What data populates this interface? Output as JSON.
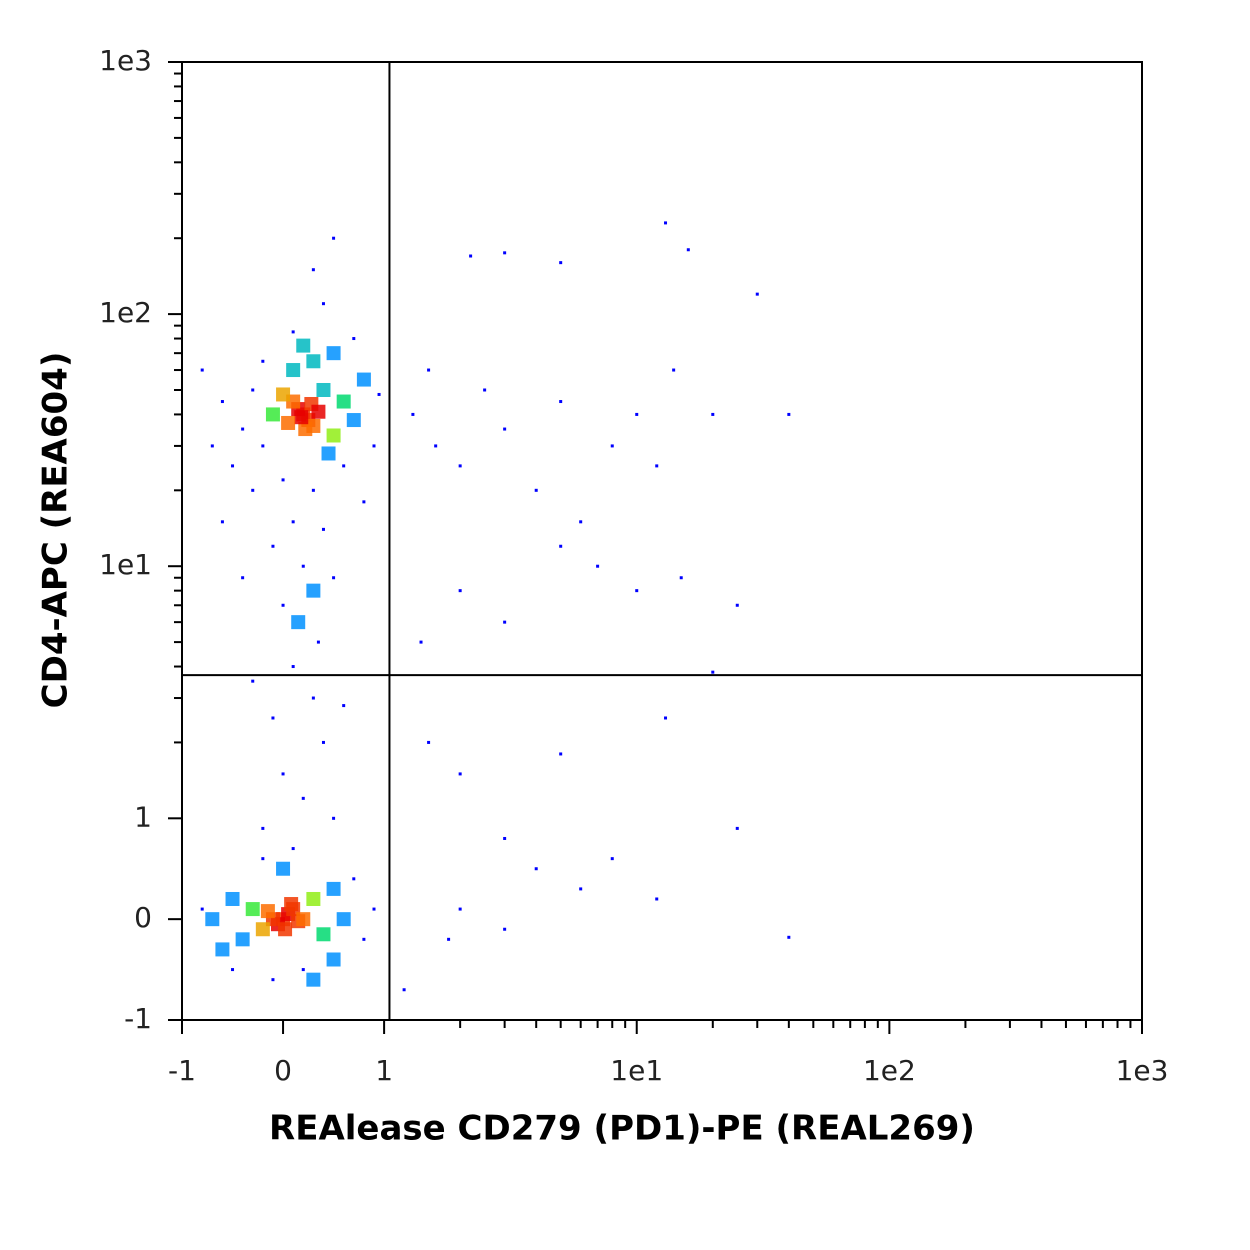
{
  "chart_data": {
    "type": "scatter",
    "x_label": "REAlease CD279 (PD1)-PE (REAL269)",
    "y_label": "CD4-APC (REA604)",
    "scale": "biexponential",
    "xlim": [
      -1,
      1000
    ],
    "ylim": [
      -1,
      1000
    ],
    "xticks": [
      -1,
      0,
      1,
      {
        "value": 10,
        "label": "1e1"
      },
      {
        "value": 100,
        "label": "1e2"
      },
      {
        "value": 1000,
        "label": "1e3"
      }
    ],
    "yticks": [
      -1,
      0,
      1,
      {
        "value": 10,
        "label": "1e1"
      },
      {
        "value": 100,
        "label": "1e2"
      },
      {
        "value": 1000,
        "label": "1e3"
      }
    ],
    "gates": {
      "x": 1.05,
      "y": 3.7
    },
    "color": "#0000ff",
    "x": [
      0.2,
      0.25,
      0.15,
      0.3,
      0.1,
      0.22,
      0.28,
      0.18,
      0.35,
      0.05,
      0.0,
      0.4,
      -0.1,
      0.5,
      -0.2,
      0.6,
      -0.3,
      0.1,
      0.3,
      0.45,
      -0.4,
      0.7,
      -0.5,
      0.8,
      -0.6,
      0.2,
      0.5,
      -0.2,
      0.0,
      0.3,
      0.6,
      -0.3,
      0.9,
      -0.7,
      0.1,
      0.4,
      -0.1,
      0.2,
      0.3,
      0.0,
      0.5,
      -0.4,
      0.15,
      0.35,
      0.1,
      -0.8,
      0.95,
      0.7,
      -0.6,
      0.8,
      0.1,
      0.3,
      -0.1,
      0.4,
      0.0,
      0.2,
      -0.3,
      0.6,
      0.5,
      -0.2,
      0.0,
      0.05,
      -0.05,
      0.1,
      -0.1,
      0.02,
      0.15,
      -0.15,
      0.08,
      0.2,
      -0.2,
      0.3,
      -0.3,
      0.4,
      -0.4,
      0.5,
      -0.5,
      0.6,
      -0.6,
      0.7,
      -0.7,
      0.8,
      -0.8,
      0.0,
      0.2,
      -0.2,
      0.3,
      0.1,
      -0.1,
      0.5,
      -0.5,
      0.9,
      1.3,
      1.6,
      2,
      1.5,
      2.5,
      3,
      4,
      5,
      6,
      8,
      10,
      12,
      14,
      20,
      30,
      40,
      16,
      13,
      2.2,
      3,
      5,
      1.4,
      2,
      3,
      5,
      7,
      10,
      15,
      20,
      25,
      1.5,
      2,
      3,
      4,
      6,
      8,
      12,
      25,
      40,
      1.2,
      2,
      3,
      1.8,
      5,
      13,
      0.5,
      0.3,
      0.4
    ],
    "y": [
      40,
      38,
      42,
      36,
      45,
      35,
      44,
      39,
      41,
      37,
      48,
      50,
      40,
      33,
      30,
      45,
      50,
      60,
      65,
      28,
      35,
      38,
      25,
      55,
      45,
      75,
      70,
      65,
      22,
      20,
      25,
      20,
      30,
      30,
      15,
      14,
      12,
      10,
      8,
      7,
      9,
      9,
      6,
      5,
      85,
      60,
      48,
      80,
      15,
      18,
      4,
      3,
      2.5,
      2,
      1.5,
      1.2,
      3.5,
      2.8,
      1.0,
      0.9,
      0.0,
      0.05,
      -0.05,
      0.1,
      0.0,
      -0.1,
      -0.02,
      0.08,
      0.15,
      0.0,
      -0.1,
      0.2,
      0.1,
      -0.15,
      -0.2,
      0.3,
      0.2,
      0.0,
      -0.3,
      0.4,
      0.0,
      -0.2,
      0.1,
      0.5,
      -0.5,
      0.6,
      -0.6,
      0.7,
      -0.6,
      -0.4,
      -0.5,
      0.1,
      40,
      30,
      25,
      60,
      50,
      35,
      20,
      45,
      15,
      30,
      40,
      25,
      60,
      40,
      120,
      40,
      180,
      230,
      170,
      175,
      160,
      5,
      8,
      6,
      12,
      10,
      8,
      9,
      3.8,
      7,
      2,
      1.5,
      0.8,
      0.5,
      0.3,
      0.6,
      0.2,
      0.9,
      -0.18,
      -0.7,
      0.1,
      -0.1,
      -0.2,
      1.8,
      2.5,
      200,
      150,
      110
    ]
  }
}
